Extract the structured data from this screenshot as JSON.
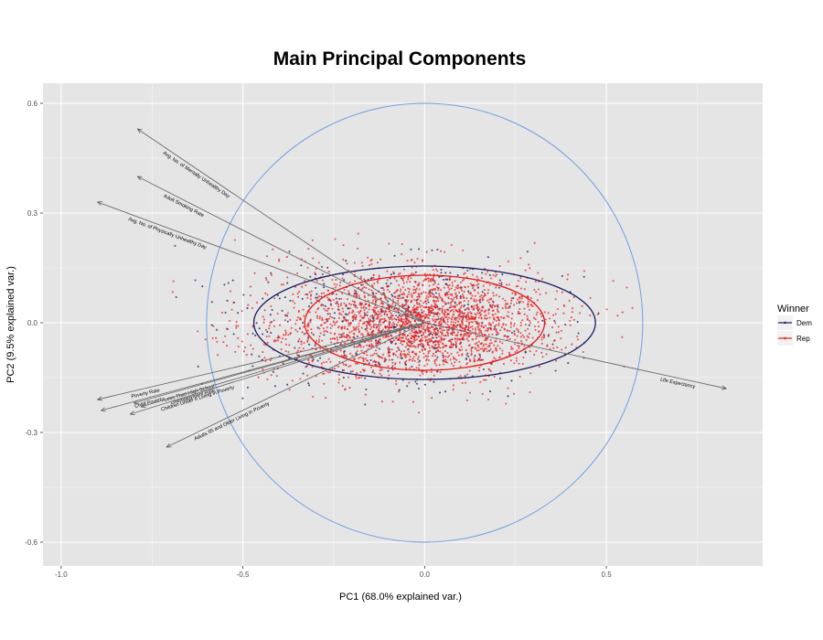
{
  "chart_data": {
    "type": "scatter",
    "title": "Main Principal Components",
    "xlabel": "PC1 (68.0% explained var.)",
    "ylabel": "PC2 (9.5% explained var.)",
    "xlim": [
      -1.05,
      0.93
    ],
    "ylim": [
      -0.665,
      0.655
    ],
    "x_ticks": [
      -1.0,
      -0.5,
      0.0,
      0.5
    ],
    "x_tick_labels": [
      "-1.0",
      "-0.5",
      "0.0",
      "0.5"
    ],
    "y_ticks": [
      -0.6,
      -0.3,
      0.0,
      0.3,
      0.6
    ],
    "y_tick_labels": [
      "-0.6",
      "-0.3",
      "0.0",
      "0.3",
      "0.6"
    ],
    "grid": true,
    "legend": {
      "title": "Winner",
      "position": "right",
      "entries": [
        {
          "name": "Dem",
          "color": "#1b1b5e"
        },
        {
          "name": "Rep",
          "color": "#e41a1c"
        }
      ]
    },
    "unit_circle": {
      "center": [
        0,
        0
      ],
      "radius": 0.6,
      "color": "#6f9fe0"
    },
    "ellipses": [
      {
        "group": "Dem",
        "center": [
          0.0,
          0.0
        ],
        "rx": 0.47,
        "ry": 0.155,
        "color": "#1b1b5e"
      },
      {
        "group": "Rep",
        "center": [
          0.0,
          0.0
        ],
        "rx": 0.33,
        "ry": 0.13,
        "color": "#e41a1c"
      }
    ],
    "loadings": [
      {
        "label": "Avg. No. of Mentally Unhealthy Day",
        "x": -0.79,
        "y": 0.53
      },
      {
        "label": "Adult Smoking Rate",
        "x": -0.79,
        "y": 0.4
      },
      {
        "label": "Avg. No. of Physically Unhealthy Day",
        "x": -0.9,
        "y": 0.33
      },
      {
        "label": "Poverty Rate",
        "x": -0.9,
        "y": -0.21
      },
      {
        "label": "Child Poverty",
        "x": -0.89,
        "y": -0.24
      },
      {
        "label": "Less Than High School",
        "x": -0.8,
        "y": -0.22
      },
      {
        "label": "Unemployment Rate",
        "x": -0.78,
        "y": -0.23
      },
      {
        "label": "Children Under 6 Living in Poverty",
        "x": -0.81,
        "y": -0.25
      },
      {
        "label": "Adults 65 and Older Living in Poverty",
        "x": -0.71,
        "y": -0.34
      },
      {
        "label": "Life Expectancy",
        "x": 0.83,
        "y": -0.18
      }
    ],
    "series": [
      {
        "name": "Dem",
        "color": "#1b1b5e",
        "n_points": 450
      },
      {
        "name": "Rep",
        "color": "#e41a1c",
        "n_points": 2600
      }
    ]
  }
}
